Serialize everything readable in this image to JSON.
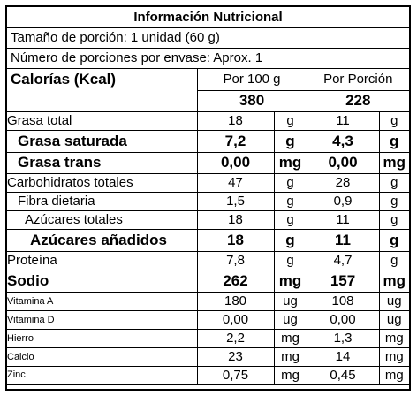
{
  "title": "Información Nutricional",
  "serving_size": "Tamaño de porción: 1 unidad (60 g)",
  "servings_per_container": "Número de porciones por envase: Aprox. 1",
  "calories": {
    "label": "Calorías (Kcal)",
    "per100_header": "Por 100 g",
    "portion_header": "Por Porción",
    "per100_value": "380",
    "portion_value": "228"
  },
  "nutrients": [
    {
      "name": "Grasa total",
      "v1": "18",
      "u1": "g",
      "v2": "11",
      "u2": "g",
      "style": "normal"
    },
    {
      "name": "Grasa saturada",
      "v1": "7,2",
      "u1": "g",
      "v2": "4,3",
      "u2": "g",
      "style": "bold-indent"
    },
    {
      "name": "Grasa trans",
      "v1": "0,00",
      "u1": "mg",
      "v2": "0,00",
      "u2": "mg",
      "style": "bold-indent"
    },
    {
      "name": "Carbohidratos totales",
      "v1": "47",
      "u1": "g",
      "v2": "28",
      "u2": "g",
      "style": "normal"
    },
    {
      "name": "Fibra dietaria",
      "v1": "1,5",
      "u1": "g",
      "v2": "0,9",
      "u2": "g",
      "style": "indent"
    },
    {
      "name": "Azúcares totales",
      "v1": "18",
      "u1": "g",
      "v2": "11",
      "u2": "g",
      "style": "indent2"
    },
    {
      "name": "Azúcares añadidos",
      "v1": "18",
      "u1": "g",
      "v2": "11",
      "u2": "g",
      "style": "bold-indent2"
    },
    {
      "name": "Proteína",
      "v1": "7,8",
      "u1": "g",
      "v2": "4,7",
      "u2": "g",
      "style": "normal"
    },
    {
      "name": "Sodio",
      "v1": "262",
      "u1": "mg",
      "v2": "157",
      "u2": "mg",
      "style": "bold"
    },
    {
      "name": "Vitamina A",
      "v1": "180",
      "u1": "ug",
      "v2": "108",
      "u2": "ug",
      "style": "small"
    },
    {
      "name": "Vitamina D",
      "v1": "0,00",
      "u1": "ug",
      "v2": "0,00",
      "u2": "ug",
      "style": "small"
    },
    {
      "name": "Hierro",
      "v1": "2,2",
      "u1": "mg",
      "v2": "1,3",
      "u2": "mg",
      "style": "small"
    },
    {
      "name": "Calcio",
      "v1": "23",
      "u1": "mg",
      "v2": "14",
      "u2": "mg",
      "style": "small"
    },
    {
      "name": "Zinc",
      "v1": "0,75",
      "u1": "mg",
      "v2": "0,45",
      "u2": "mg",
      "style": "small"
    }
  ]
}
